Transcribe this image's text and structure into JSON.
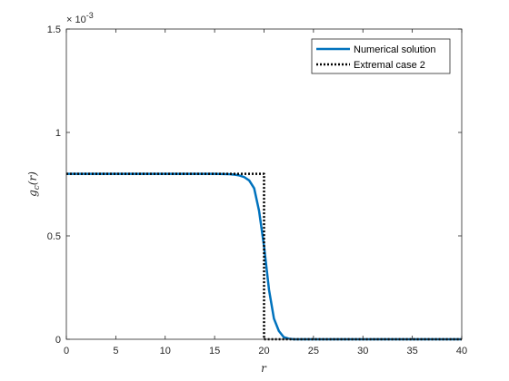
{
  "chart_data": {
    "type": "line",
    "title": "",
    "xlabel": "r",
    "ylabel": "g_c(r)",
    "ylabel_base": "g",
    "ylabel_sub": "c",
    "ylabel_arg": "(r)",
    "y_exponent_base": "× 10",
    "y_exponent_power": "-3",
    "xlim": [
      0,
      40
    ],
    "ylim": [
      0,
      0.0015
    ],
    "x_ticks": [
      0,
      5,
      10,
      15,
      20,
      25,
      30,
      35,
      40
    ],
    "x_tick_labels": [
      "0",
      "5",
      "10",
      "15",
      "20",
      "25",
      "30",
      "35",
      "40"
    ],
    "y_ticks": [
      0,
      0.0005,
      0.001,
      0.0015
    ],
    "y_tick_labels": [
      "0",
      "0.5",
      "1",
      "1.5"
    ],
    "grid": false,
    "legend_position": "top-right",
    "series": [
      {
        "name": "Numerical solution",
        "color": "#0072BD",
        "style": "solid",
        "x": [
          0,
          2,
          4,
          6,
          8,
          10,
          12,
          14,
          15,
          16,
          16.5,
          17,
          17.5,
          18,
          18.5,
          19,
          19.5,
          20,
          20.5,
          21,
          21.5,
          22,
          22.5,
          23,
          24,
          26,
          30,
          35,
          40
        ],
        "y": [
          0.0008,
          0.0008,
          0.0008,
          0.0008,
          0.0008,
          0.0008,
          0.0008,
          0.0008,
          0.0008,
          0.000799,
          0.000798,
          0.000796,
          0.000792,
          0.000784,
          0.000768,
          0.00073,
          0.00062,
          0.00045,
          0.00024,
          0.0001,
          4e-05,
          1e-05,
          3e-06,
          0,
          0,
          0,
          0,
          0,
          0
        ]
      },
      {
        "name": "Extremal case 2",
        "color": "#000000",
        "style": "dotted",
        "x": [
          0,
          20,
          20,
          40
        ],
        "y": [
          0.0008,
          0.0008,
          0,
          0
        ]
      }
    ]
  }
}
